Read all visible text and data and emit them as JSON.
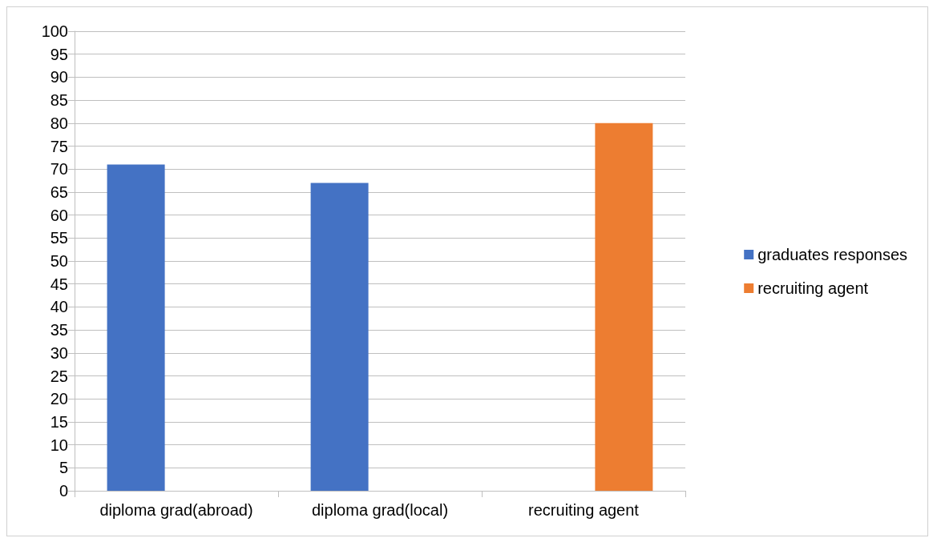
{
  "chart_data": {
    "type": "bar",
    "categories": [
      "diploma grad(abroad)",
      "diploma grad(local)",
      "recruiting agent"
    ],
    "series": [
      {
        "name": "graduates responses",
        "color": "#4472c4",
        "values": [
          71,
          67,
          null
        ]
      },
      {
        "name": "recruiting agent",
        "color": "#ed7d31",
        "values": [
          null,
          null,
          80
        ]
      }
    ],
    "ylim": [
      0,
      100
    ],
    "yticks": [
      0,
      5,
      10,
      15,
      20,
      25,
      30,
      35,
      40,
      45,
      50,
      55,
      60,
      65,
      70,
      75,
      80,
      85,
      90,
      95,
      100
    ],
    "grid": "y",
    "legend": "right"
  }
}
